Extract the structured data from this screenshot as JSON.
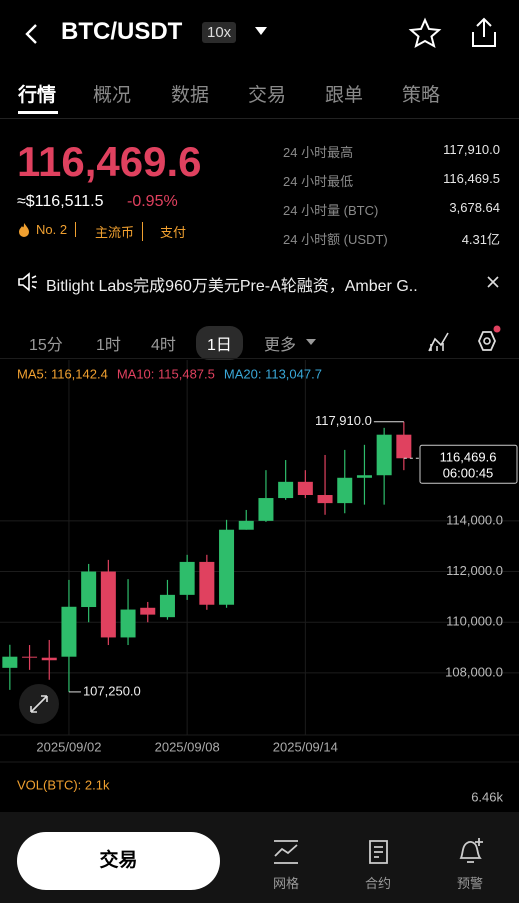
{
  "header": {
    "pair": "BTC/USDT",
    "leverage": "10x"
  },
  "tabs": [
    "行情",
    "概况",
    "数据",
    "交易",
    "跟单",
    "策略"
  ],
  "ticker": {
    "price": "116,469.6",
    "usd": "≈$116,511.5",
    "change": "-0.95%",
    "rank": "No. 2",
    "tags": [
      "主流币",
      "支付"
    ],
    "stats": [
      {
        "label": "24 小时最高",
        "value": "117,910.0"
      },
      {
        "label": "24 小时最低",
        "value": "116,469.5"
      },
      {
        "label": "24 小时量 (BTC)",
        "value": "3,678.64"
      },
      {
        "label": "24 小时额 (USDT)",
        "value": "4.31亿"
      }
    ]
  },
  "news": "Bitlight Labs完成960万美元Pre-A轮融资，Amber G..",
  "intervals": [
    "15分",
    "1时",
    "4时",
    "1日",
    "更多"
  ],
  "chart_data": {
    "type": "candlestick",
    "categories": [
      null,
      null,
      null,
      "2025/09/02",
      null,
      null,
      null,
      null,
      null,
      "2025/09/08",
      null,
      null,
      null,
      null,
      null,
      "2025/09/14",
      null,
      null,
      null,
      null,
      null
    ],
    "open": [
      108200,
      108640,
      108600,
      108640,
      110600,
      112000,
      109400,
      110570,
      110200,
      111080,
      112380,
      110690,
      113650,
      114000,
      114900,
      115540,
      115020,
      114700,
      115700,
      115800,
      117400
    ],
    "high": [
      109110,
      109100,
      109300,
      111670,
      112300,
      112460,
      111700,
      110800,
      111670,
      112660,
      112660,
      114040,
      114430,
      116000,
      116400,
      116000,
      116600,
      116800,
      117000,
      117670,
      117910
    ],
    "low": [
      107330,
      108120,
      107730,
      107250,
      110000,
      109100,
      109100,
      110000,
      110100,
      110880,
      110490,
      110570,
      113650,
      113960,
      114830,
      114900,
      114240,
      114300,
      114640,
      114640,
      116000
    ],
    "close": [
      108640,
      108600,
      108500,
      110610,
      112000,
      109400,
      110500,
      110300,
      111080,
      112380,
      110690,
      113650,
      114000,
      114900,
      115540,
      115020,
      114700,
      115700,
      115800,
      117400,
      116469.6
    ],
    "up_color": "#2ebd6b",
    "down_color": "#e0415f",
    "series": [
      {
        "name": "MA5: 116,142.4",
        "color": "#f0a030",
        "values": [
          110490,
          109900,
          109310,
          108710,
          109310,
          110020,
          110410,
          110690,
          110490,
          110880,
          110960,
          111870,
          112660,
          113650,
          114430,
          114830,
          114910,
          114950,
          115140,
          115620,
          116142.4
        ]
      },
      {
        "name": "MA10: 115,487.5",
        "color": "#e0415f",
        "values": [
          112070,
          111670,
          111080,
          110690,
          110490,
          110410,
          110170,
          109900,
          110020,
          110290,
          110410,
          110880,
          111280,
          111750,
          112260,
          112860,
          113450,
          114040,
          114430,
          114910,
          115487.5
        ]
      },
      {
        "name": "MA20: 113,047.7",
        "color": "#3aa8d8",
        "values": [
          115420,
          114630,
          113840,
          113050,
          112460,
          111990,
          111670,
          111480,
          111280,
          111200,
          111160,
          111200,
          111240,
          111280,
          111360,
          111480,
          111670,
          111870,
          112070,
          112460,
          113047.7
        ]
      }
    ],
    "ylim": [
      105550,
      120150
    ],
    "yticks": [
      {
        "value": 108000,
        "label": "108,000.0"
      },
      {
        "value": 110000,
        "label": "110,000.0"
      },
      {
        "value": 112000,
        "label": "112,000.0"
      },
      {
        "value": 114000,
        "label": "114,000.0"
      }
    ],
    "grid": true,
    "high_marker": {
      "value": 117910,
      "label": "117,910.0"
    },
    "low_marker": {
      "value": 107250,
      "label": "107,250.0"
    },
    "last_price": {
      "value": 116469.6,
      "label": "116,469.6"
    },
    "countdown": "06:00:45"
  },
  "volume": {
    "label": "VOL(BTC): 2.1k",
    "tick": "6.46k"
  },
  "nav": {
    "button": "交易",
    "items": [
      "网格",
      "合约",
      "预警"
    ]
  }
}
